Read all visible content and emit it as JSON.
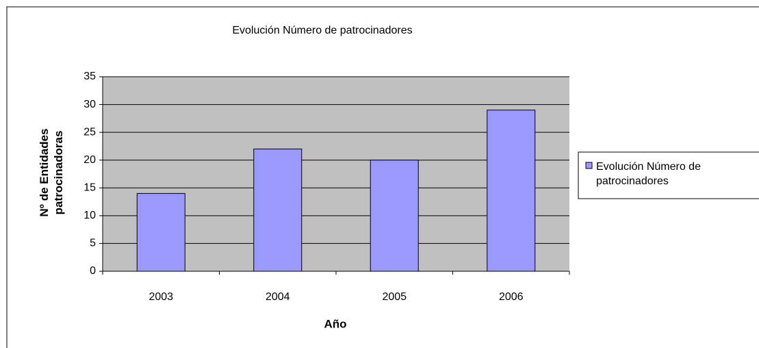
{
  "chart_data": {
    "type": "bar",
    "title": "Evolución Número de patrocinadores",
    "x_label": "Año",
    "y_label": "Nº de Entidades patrocinadoras",
    "categories": [
      "2003",
      "2004",
      "2005",
      "2006"
    ],
    "series": [
      {
        "name": "Evolución Número de patrocinadores",
        "color": "#9999ff",
        "values": [
          14,
          22,
          20,
          29
        ]
      }
    ],
    "ylim": [
      0,
      35
    ],
    "yticks": [
      0,
      5,
      10,
      15,
      20,
      25,
      30,
      35
    ],
    "grid": true,
    "legend": "right"
  }
}
